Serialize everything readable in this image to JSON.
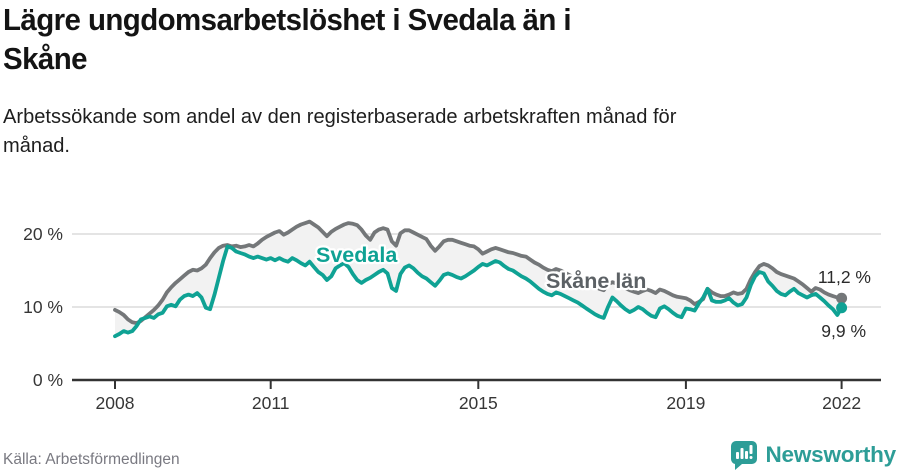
{
  "header": {
    "title_lines": [
      "Lägre ungdomsarbetslöshet i Svedala än i",
      "Skåne"
    ],
    "subtitle_lines": [
      "Arbetssökande som andel av den registerbaserade arbetskraften månad för",
      "månad."
    ]
  },
  "footer": {
    "source": "Källa: Arbetsförmedlingen",
    "brand": "Newsworthy"
  },
  "colors": {
    "svedala": "#0fa294",
    "skane": "#747779",
    "skane_label": "#5c6165",
    "band_fill": "#f2f2f2",
    "gridline": "#d4d4d4",
    "axis": "#333333",
    "tick_text": "#363636",
    "end_label_text": "#2b2b2b",
    "brand_teal": "#2d9d97"
  },
  "chart_data": {
    "type": "line",
    "title": "Lägre ungdomsarbetslöshet i Svedala än i Skåne",
    "subtitle": "Arbetssökande som andel av den registerbaserade arbetskraften månad för månad.",
    "unit": "%",
    "x_start_year": 2008,
    "x_start_month": 1,
    "x_step_months": 1,
    "x_end_label_note": "series run monthly Jan 2008 – Jan 2022",
    "ylim": [
      0,
      24
    ],
    "grid": true,
    "legend": "inline-labels",
    "y_ticks": [
      {
        "v": 20,
        "label": "20 %"
      },
      {
        "v": 10,
        "label": "10 %"
      },
      {
        "v": 0,
        "label": "0 %"
      }
    ],
    "x_ticks": [
      {
        "t": 2008,
        "label": "2008"
      },
      {
        "t": 2011,
        "label": "2011"
      },
      {
        "t": 2015,
        "label": "2015"
      },
      {
        "t": 2019,
        "label": "2019"
      },
      {
        "t": 2022,
        "label": "2022"
      }
    ],
    "series": [
      {
        "name": "Skåne län",
        "inline_label": "Skåne län",
        "end_label": "11,2 %",
        "end_value": 11.2,
        "values": [
          9.6,
          9.3,
          8.9,
          8.3,
          7.9,
          7.8,
          8.1,
          8.6,
          9.1,
          9.6,
          10.2,
          11.0,
          12.0,
          12.7,
          13.3,
          13.8,
          14.3,
          14.8,
          15.1,
          15.0,
          15.3,
          15.8,
          16.7,
          17.5,
          18.1,
          18.4,
          18.5,
          18.3,
          18.4,
          18.2,
          18.3,
          18.5,
          18.3,
          18.7,
          19.2,
          19.6,
          19.9,
          20.2,
          20.4,
          19.9,
          20.2,
          20.6,
          21.0,
          21.3,
          21.5,
          21.7,
          21.3,
          20.9,
          20.3,
          19.7,
          20.3,
          20.7,
          21.0,
          21.3,
          21.5,
          21.4,
          21.2,
          20.6,
          19.8,
          19.2,
          20.2,
          20.6,
          20.8,
          20.6,
          19.0,
          18.4,
          20.1,
          20.5,
          20.5,
          20.2,
          19.9,
          19.6,
          19.3,
          18.4,
          17.7,
          18.3,
          19.0,
          19.2,
          19.2,
          19.0,
          18.8,
          18.6,
          18.4,
          18.3,
          17.9,
          17.3,
          17.6,
          17.9,
          18.1,
          17.9,
          17.7,
          17.5,
          17.4,
          17.2,
          17.0,
          16.9,
          16.5,
          16.1,
          15.8,
          15.4,
          15.1,
          14.9,
          15.2,
          15.0,
          14.7,
          14.4,
          14.1,
          13.9,
          13.6,
          13.3,
          13.0,
          12.8,
          12.5,
          12.3,
          13.1,
          13.4,
          13.2,
          12.9,
          12.6,
          12.3,
          12.1,
          11.9,
          12.2,
          12.4,
          12.2,
          11.9,
          12.4,
          12.2,
          11.9,
          11.6,
          11.4,
          11.3,
          11.2,
          10.9,
          10.4,
          10.7,
          11.1,
          12.5,
          12.0,
          11.7,
          11.5,
          11.5,
          11.7,
          12.0,
          11.8,
          11.9,
          12.5,
          13.8,
          14.8,
          15.6,
          15.9,
          15.7,
          15.3,
          14.8,
          14.5,
          14.3,
          14.1,
          13.9,
          13.5,
          13.1,
          12.6,
          12.1,
          12.6,
          12.4,
          12.0,
          11.7,
          11.5,
          11.3,
          11.2
        ]
      },
      {
        "name": "Svedala",
        "inline_label": "Svedala",
        "end_label": "9,9 %",
        "end_value": 9.9,
        "values": [
          6.0,
          6.3,
          6.7,
          6.5,
          6.7,
          7.4,
          8.3,
          8.5,
          8.7,
          8.5,
          9.0,
          9.2,
          10.1,
          10.3,
          10.1,
          11.0,
          11.5,
          11.7,
          11.5,
          11.9,
          11.3,
          9.9,
          9.7,
          11.7,
          14.0,
          16.3,
          18.3,
          18.1,
          17.6,
          17.4,
          17.2,
          16.9,
          16.7,
          16.9,
          16.7,
          16.5,
          16.7,
          16.4,
          16.7,
          16.4,
          16.2,
          16.7,
          16.4,
          16.0,
          15.7,
          16.2,
          15.5,
          14.8,
          14.4,
          13.7,
          14.2,
          15.3,
          15.7,
          16.0,
          15.5,
          14.5,
          13.7,
          13.3,
          13.7,
          14.0,
          14.4,
          14.8,
          15.1,
          14.6,
          12.6,
          12.2,
          14.5,
          15.4,
          15.7,
          15.3,
          14.7,
          14.2,
          13.9,
          13.4,
          12.9,
          13.6,
          14.4,
          14.6,
          14.4,
          14.1,
          13.9,
          14.2,
          14.6,
          15.0,
          15.5,
          15.9,
          15.7,
          16.0,
          16.3,
          16.1,
          15.6,
          15.2,
          15.0,
          14.6,
          14.2,
          13.9,
          13.5,
          13.0,
          12.5,
          12.1,
          11.8,
          11.6,
          12.0,
          11.8,
          11.5,
          11.2,
          10.9,
          10.6,
          10.2,
          9.8,
          9.4,
          9.0,
          8.7,
          8.5,
          10.0,
          11.3,
          10.8,
          10.2,
          9.7,
          9.3,
          9.6,
          10.0,
          9.7,
          9.2,
          8.8,
          8.6,
          9.8,
          10.1,
          9.7,
          9.2,
          8.8,
          8.6,
          9.8,
          9.7,
          9.5,
          10.5,
          11.3,
          12.5,
          10.9,
          10.7,
          10.7,
          10.9,
          11.2,
          10.6,
          10.2,
          10.4,
          11.3,
          13.0,
          14.2,
          14.8,
          14.6,
          13.5,
          12.9,
          12.2,
          11.8,
          11.6,
          12.1,
          12.5,
          11.9,
          11.6,
          11.3,
          11.6,
          11.8,
          11.3,
          10.8,
          10.2,
          9.7,
          8.9,
          9.9
        ]
      }
    ]
  }
}
